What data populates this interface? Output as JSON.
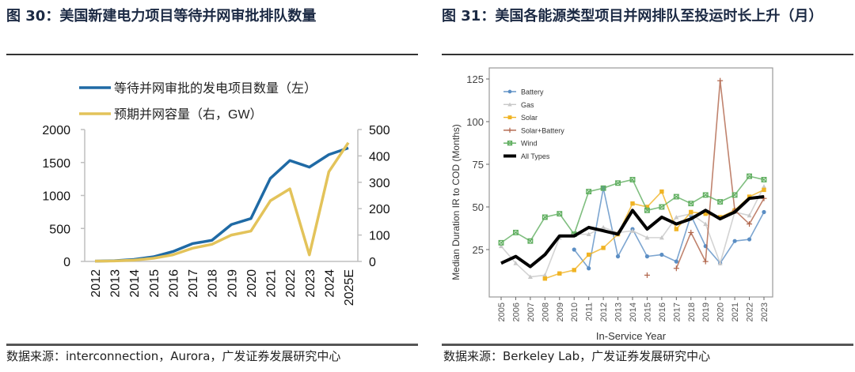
{
  "left_figure": {
    "title": "图 30：美国新建电力项目等待并网审批排队数量",
    "source": "数据来源：interconnection，Aurora，广发证券发展研究中心"
  },
  "right_figure": {
    "title": "图 31：美国各能源类型项目并网排队至投运时长上升（月）",
    "source": "数据来源：Berkeley Lab，广发证券发展研究中心"
  },
  "chart_data": [
    {
      "type": "line",
      "title": "美国新建电力项目等待并网审批排队数量",
      "categories": [
        "2012",
        "2013",
        "2014",
        "2015",
        "2016",
        "2017",
        "2018",
        "2019",
        "2020",
        "2021",
        "2022",
        "2023",
        "2024",
        "2025E"
      ],
      "series": [
        {
          "name": "等待并网审批的发电项目数量（左）",
          "axis": "left",
          "color": "#1f6aa5",
          "values": [
            5,
            10,
            30,
            70,
            150,
            270,
            320,
            560,
            650,
            1260,
            1530,
            1430,
            1620,
            1720
          ]
        },
        {
          "name": "预期并网容量（右，GW）",
          "axis": "right",
          "color": "#e3c35a",
          "values": [
            1,
            2,
            5,
            12,
            25,
            50,
            65,
            100,
            115,
            230,
            275,
            25,
            340,
            450
          ]
        }
      ],
      "yleft": {
        "lim": [
          0,
          2000
        ],
        "ticks": [
          "0",
          "500",
          "1000",
          "1500",
          "2000"
        ]
      },
      "yright": {
        "lim": [
          0,
          500
        ],
        "ticks": [
          "0",
          "100",
          "200",
          "300",
          "400",
          "500"
        ]
      },
      "xlabel": "",
      "ylabel": "",
      "legend_position": "top-left",
      "grid": false
    },
    {
      "type": "line",
      "title": "美国各能源类型项目并网排队至投运时长上升（月）",
      "x": [
        "2005",
        "2006",
        "2007",
        "2008",
        "2009",
        "2010",
        "2011",
        "2012",
        "2013",
        "2014",
        "2015",
        "2016",
        "2017",
        "2018",
        "2019",
        "2020",
        "2021",
        "2022",
        "2023"
      ],
      "xlabel": "In-Service Year",
      "ylabel": "Median Duration IR to COD (Months)",
      "ylim": [
        0,
        128
      ],
      "yticks": [
        "25",
        "50",
        "75",
        "100",
        "125"
      ],
      "legend_position": "top-left",
      "grid": false,
      "series": [
        {
          "name": "Battery",
          "color": "#5b8ec4",
          "marker": "circle",
          "values": [
            null,
            null,
            null,
            null,
            null,
            25,
            14,
            61,
            21,
            37,
            21,
            22,
            18,
            45,
            27,
            17,
            30,
            31,
            47
          ]
        },
        {
          "name": "Gas",
          "color": "#c8c8c8",
          "marker": "triangle",
          "values": [
            27,
            17,
            9,
            10,
            32,
            34,
            34,
            38,
            35,
            36,
            32,
            32,
            44,
            46,
            40,
            17,
            47,
            45,
            62
          ]
        },
        {
          "name": "Solar",
          "color": "#f0b323",
          "marker": "square",
          "values": [
            null,
            null,
            null,
            8,
            11,
            13,
            22,
            26,
            34,
            52,
            50,
            59,
            37,
            47,
            46,
            44,
            48,
            56,
            60
          ]
        },
        {
          "name": "Solar+Battery",
          "color": "#b0644a",
          "marker": "plus",
          "values": [
            null,
            null,
            null,
            null,
            null,
            null,
            null,
            null,
            null,
            null,
            10,
            null,
            14,
            35,
            18,
            124,
            48,
            40,
            55
          ]
        },
        {
          "name": "Wind",
          "color": "#5fae5f",
          "marker": "square-x",
          "values": [
            29,
            35,
            30,
            44,
            46,
            34,
            59,
            61,
            64,
            66,
            48,
            50,
            56,
            52,
            57,
            53,
            57,
            68,
            66
          ]
        },
        {
          "name": "All Types",
          "color": "#000000",
          "marker": "none",
          "values": [
            17,
            21,
            15,
            22,
            33,
            33,
            38,
            36,
            34,
            48,
            37,
            44,
            40,
            43,
            48,
            43,
            47,
            55,
            56
          ]
        }
      ]
    }
  ]
}
